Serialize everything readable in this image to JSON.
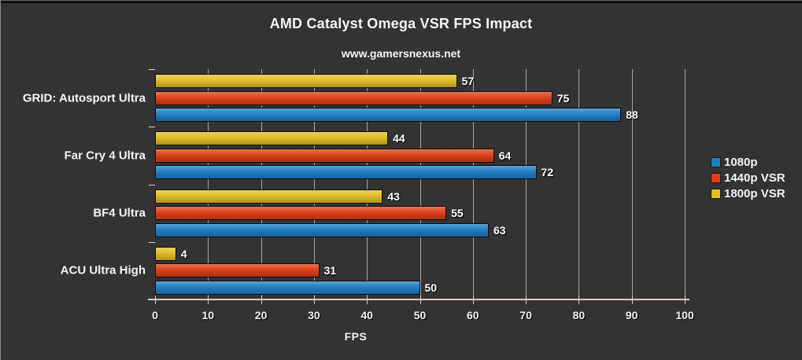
{
  "chart_data": {
    "type": "bar",
    "orientation": "horizontal",
    "title": "AMD Catalyst Omega VSR FPS Impact",
    "subtitle": "www.gamersnexus.net",
    "categories": [
      "GRID: Autosport Ultra",
      "Far Cry 4 Ultra",
      "BF4 Ultra",
      "ACU Ultra High"
    ],
    "series": [
      {
        "name": "1080p",
        "color": "#1f7ec4",
        "values": [
          88,
          72,
          63,
          50
        ]
      },
      {
        "name": "1440p VSR",
        "color": "#dd3f16",
        "values": [
          75,
          64,
          55,
          31
        ]
      },
      {
        "name": "1800p VSR",
        "color": "#e2bd25",
        "values": [
          57,
          44,
          43,
          4
        ]
      }
    ],
    "bar_order_top_to_bottom": [
      "1800p VSR",
      "1440p VSR",
      "1080p"
    ],
    "xlabel": "FPS",
    "xlim": [
      0,
      100
    ],
    "xticks": [
      0,
      10,
      20,
      30,
      40,
      50,
      60,
      70,
      80,
      90,
      100
    ],
    "grid": true,
    "value_labels": true,
    "legend_position": "right"
  },
  "theme": {
    "background": "#333333",
    "text": "#f5f5f5",
    "gridline": "#c2c2c2",
    "axis_line": "#d9ccc6",
    "bar_border": "#0d0d0d"
  }
}
